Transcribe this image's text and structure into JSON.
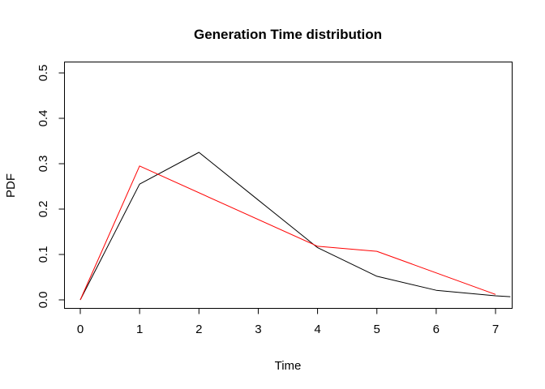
{
  "chart_data": {
    "type": "line",
    "title": "Generation Time distribution",
    "xlabel": "Time",
    "ylabel": "PDF",
    "xlim": [
      0,
      7.25
    ],
    "ylim": [
      0,
      0.5
    ],
    "x_ticks": [
      0,
      1,
      2,
      3,
      4,
      5,
      6,
      7
    ],
    "y_ticks": [
      0.0,
      0.1,
      0.2,
      0.3,
      0.4,
      0.5
    ],
    "x_tick_labels": [
      "0",
      "1",
      "2",
      "3",
      "4",
      "5",
      "6",
      "7"
    ],
    "y_tick_labels": [
      "0.0",
      "0.1",
      "0.2",
      "0.3",
      "0.4",
      "0.5"
    ],
    "grid": false,
    "legend": "none",
    "series": [
      {
        "color": "#000000",
        "x": [
          0,
          1,
          2,
          3,
          4,
          5,
          6,
          7,
          7.25
        ],
        "values": [
          0.0,
          0.255,
          0.325,
          0.22,
          0.115,
          0.052,
          0.021,
          0.009,
          0.007
        ]
      },
      {
        "color": "#ff0000",
        "x": [
          0,
          1,
          4,
          5,
          7
        ],
        "values": [
          0.0,
          0.295,
          0.118,
          0.107,
          0.012
        ]
      }
    ]
  }
}
